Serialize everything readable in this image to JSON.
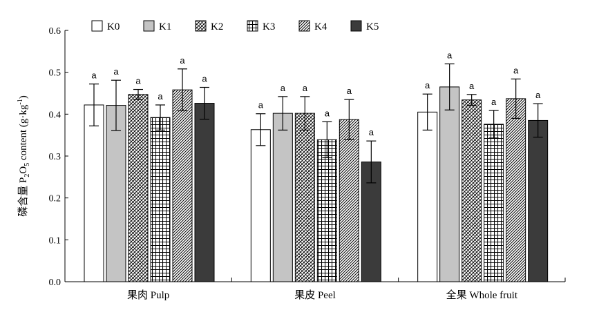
{
  "chart_data": {
    "type": "bar",
    "categories": [
      "果肉 Pulp",
      "果皮 Peel",
      "全果 Whole fruit"
    ],
    "ylabel_parts": [
      "磷含量 P",
      "2",
      "O",
      "5",
      " content (g·kg",
      "-1",
      ")"
    ],
    "ylim": [
      0,
      0.6
    ],
    "yticks": [
      "0.0",
      "0.1",
      "0.2",
      "0.3",
      "0.4",
      "0.5",
      "0.6"
    ],
    "legend_position": "top-left",
    "grid": false,
    "series": [
      {
        "name": "K0",
        "pattern": "solid-white",
        "values": [
          0.422,
          0.363,
          0.405
        ],
        "errors": [
          0.05,
          0.038,
          0.043
        ],
        "labels": [
          "a",
          "a",
          "a"
        ]
      },
      {
        "name": "K1",
        "pattern": "solid-lightgray",
        "values": [
          0.421,
          0.402,
          0.465
        ],
        "errors": [
          0.06,
          0.04,
          0.055
        ],
        "labels": [
          "a",
          "a",
          "a"
        ]
      },
      {
        "name": "K2",
        "pattern": "diagonal-check",
        "values": [
          0.447,
          0.402,
          0.434
        ],
        "errors": [
          0.012,
          0.04,
          0.013
        ],
        "labels": [
          "a",
          "a",
          "a"
        ]
      },
      {
        "name": "K3",
        "pattern": "grid",
        "values": [
          0.392,
          0.339,
          0.376
        ],
        "errors": [
          0.03,
          0.043,
          0.033
        ],
        "labels": [
          "a",
          "a",
          "a"
        ]
      },
      {
        "name": "K4",
        "pattern": "diagonal-hatch",
        "values": [
          0.458,
          0.387,
          0.437
        ],
        "errors": [
          0.05,
          0.048,
          0.047
        ],
        "labels": [
          "a",
          "a",
          "a"
        ]
      },
      {
        "name": "K5",
        "pattern": "solid-darkgray",
        "values": [
          0.426,
          0.286,
          0.385
        ],
        "errors": [
          0.038,
          0.05,
          0.04
        ],
        "labels": [
          "a",
          "a",
          "a"
        ]
      }
    ],
    "colors": {
      "white": "#ffffff",
      "lightgray": "#c4c4c4",
      "darkgray": "#3b3b3b",
      "stroke": "#000000"
    }
  }
}
